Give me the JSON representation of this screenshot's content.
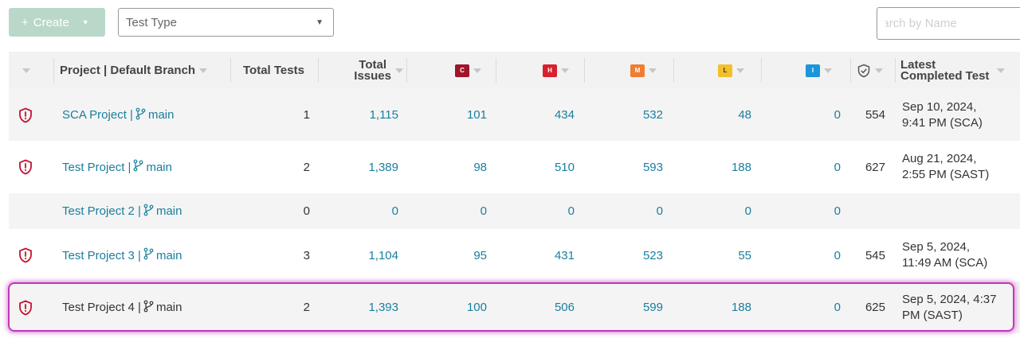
{
  "toolbar": {
    "create_label": "Create",
    "test_type_value": "Test Type",
    "search_placeholder": "Search by Name"
  },
  "columns": {
    "project": "Project | Default Branch",
    "total_tests": "Total Tests",
    "total_issues": [
      "Total",
      "Issues"
    ],
    "critical": "C",
    "high": "H",
    "medium": "M",
    "low": "L",
    "info": "I",
    "latest": [
      "Latest",
      "Completed Test"
    ]
  },
  "severity_colors": {
    "critical": "#a1142a",
    "high": "#d8202f",
    "medium": "#ef7d32",
    "low": "#f4bf2c",
    "info": "#1b95dc"
  },
  "rows": [
    {
      "project": "SCA Project",
      "branch": "main",
      "total_tests": "1",
      "total_issues": "1,115",
      "critical": "101",
      "high": "434",
      "medium": "532",
      "low": "48",
      "info": "0",
      "verified": "554",
      "latest": [
        "Sep 10, 2024,",
        "9:41 PM (SCA)"
      ],
      "has_alert": true
    },
    {
      "project": "Test Project",
      "branch": "main",
      "total_tests": "2",
      "total_issues": "1,389",
      "critical": "98",
      "high": "510",
      "medium": "593",
      "low": "188",
      "info": "0",
      "verified": "627",
      "latest": [
        "Aug 21, 2024,",
        "2:55 PM (SAST)"
      ],
      "has_alert": true
    },
    {
      "project": "Test Project 2",
      "branch": "main",
      "total_tests": "0",
      "total_issues": "0",
      "critical": "0",
      "high": "0",
      "medium": "0",
      "low": "0",
      "info": "0",
      "verified": "",
      "latest": [
        "",
        ""
      ],
      "has_alert": false
    },
    {
      "project": "Test Project 3",
      "branch": "main",
      "total_tests": "3",
      "total_issues": "1,104",
      "critical": "95",
      "high": "431",
      "medium": "523",
      "low": "55",
      "info": "0",
      "verified": "545",
      "latest": [
        "Sep 5, 2024,",
        "11:49 AM (SCA)"
      ],
      "has_alert": true
    },
    {
      "project": "Test Project 4",
      "branch": "main",
      "total_tests": "2",
      "total_issues": "1,393",
      "critical": "100",
      "high": "506",
      "medium": "599",
      "low": "188",
      "info": "0",
      "verified": "625",
      "latest": [
        "Sep 5, 2024, 4:37",
        "PM (SAST)"
      ],
      "has_alert": true
    }
  ]
}
